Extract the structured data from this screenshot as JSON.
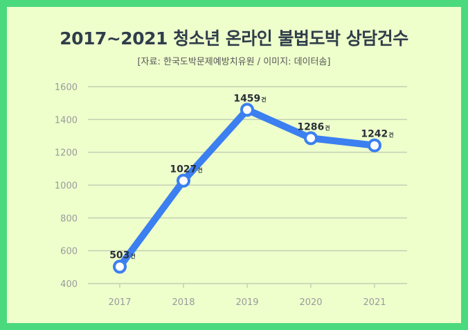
{
  "chart_data": {
    "type": "line",
    "title": "2017~2021 청소년 온라인 불법도박 상담건수",
    "subtitle": "[자료: 한국도박문제예방치유원 / 이미지: 데이터솜]",
    "categories": [
      "2017",
      "2018",
      "2019",
      "2020",
      "2021"
    ],
    "values": [
      503,
      1027,
      1459,
      1286,
      1242
    ],
    "value_unit": "건",
    "yticks": [
      "400",
      "600",
      "800",
      "1000",
      "1200",
      "1400",
      "1600"
    ],
    "ylim": [
      400,
      1600
    ],
    "grid": true,
    "line_color": "#3b7ff0",
    "background_color": "#eeffcc",
    "border_color": "#4bd97e"
  }
}
